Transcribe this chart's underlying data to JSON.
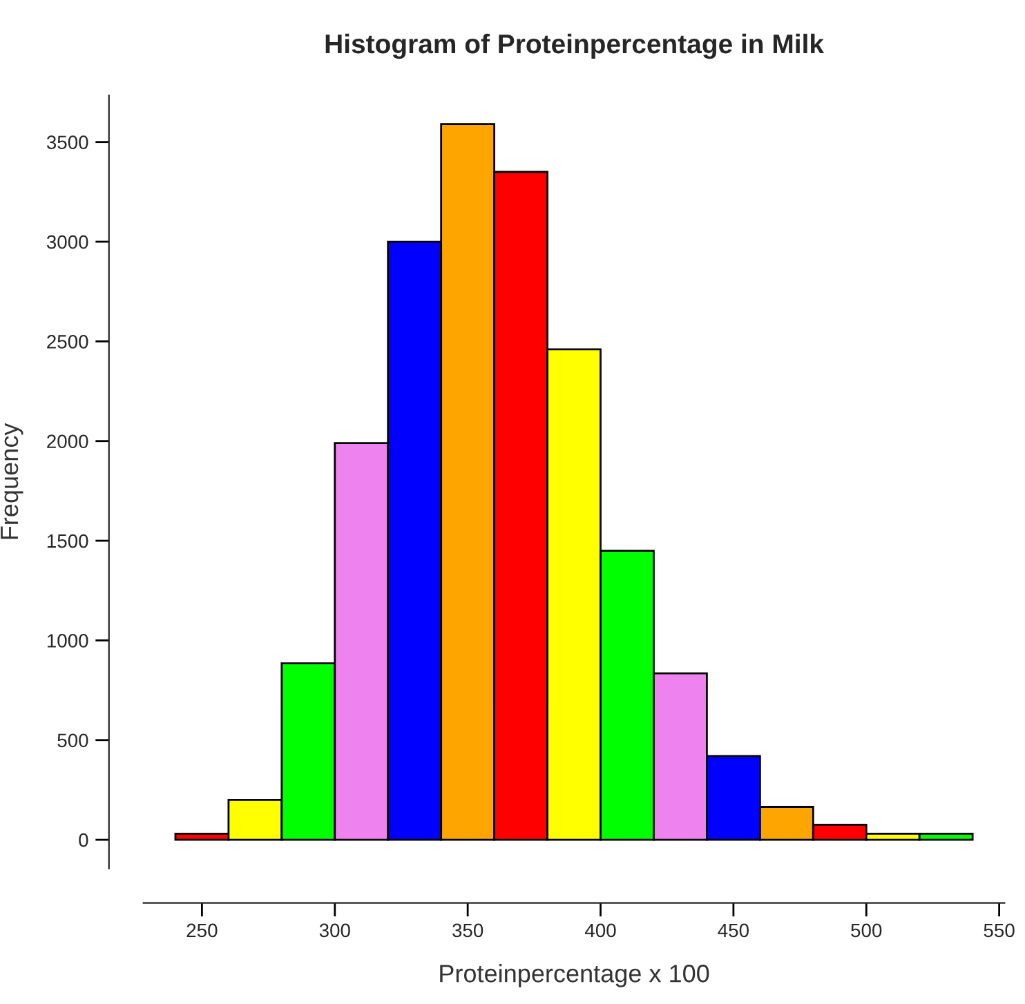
{
  "chart_data": {
    "type": "histogram",
    "title": "Histogram of Proteinpercentage in Milk",
    "xlabel": "Proteinpercentage x 100",
    "ylabel": "Frequency",
    "bins": [
      240,
      260,
      280,
      300,
      320,
      340,
      360,
      380,
      400,
      420,
      440,
      460,
      480,
      500,
      520,
      540
    ],
    "values": [
      30,
      200,
      885,
      1990,
      3000,
      3590,
      3350,
      2460,
      1450,
      835,
      420,
      165,
      75,
      30,
      30
    ],
    "colors": [
      "#ff0000",
      "#ffff00",
      "#00ff00",
      "#ee82ee",
      "#0000ff",
      "#ffa500",
      "#ff0000",
      "#ffff00",
      "#00ff00",
      "#ee82ee",
      "#0000ff",
      "#ffa500",
      "#ff0000",
      "#ffff00",
      "#00ff00"
    ],
    "xlim": [
      228,
      552
    ],
    "ylim": [
      -144,
      3734
    ],
    "xticks": [
      250,
      300,
      350,
      400,
      450,
      500,
      550
    ],
    "yticks": [
      0,
      500,
      1000,
      1500,
      2000,
      2500,
      3000,
      3500
    ],
    "grid": false
  }
}
